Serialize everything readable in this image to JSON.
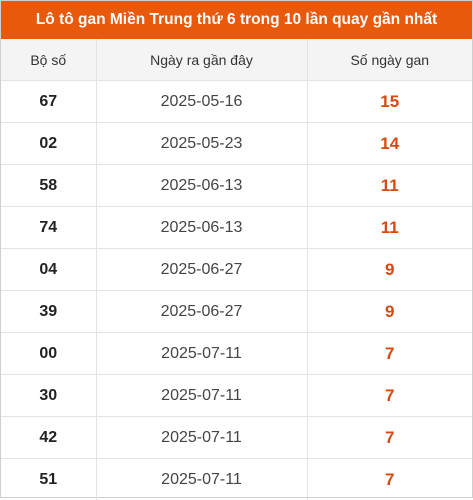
{
  "title": "Lô tô gan Miền Trung thứ 6 trong 10 lần quay gần nhất",
  "colors": {
    "header_bg": "#e8590c",
    "gan_value": "#d9480f"
  },
  "columns": [
    "Bộ số",
    "Ngày ra gần đây",
    "Số ngày gan"
  ],
  "rows": [
    {
      "number": "67",
      "date": "2025-05-16",
      "days": "15"
    },
    {
      "number": "02",
      "date": "2025-05-23",
      "days": "14"
    },
    {
      "number": "58",
      "date": "2025-06-13",
      "days": "11"
    },
    {
      "number": "74",
      "date": "2025-06-13",
      "days": "11"
    },
    {
      "number": "04",
      "date": "2025-06-27",
      "days": "9"
    },
    {
      "number": "39",
      "date": "2025-06-27",
      "days": "9"
    },
    {
      "number": "00",
      "date": "2025-07-11",
      "days": "7"
    },
    {
      "number": "30",
      "date": "2025-07-11",
      "days": "7"
    },
    {
      "number": "42",
      "date": "2025-07-11",
      "days": "7"
    },
    {
      "number": "51",
      "date": "2025-07-11",
      "days": "7"
    }
  ]
}
